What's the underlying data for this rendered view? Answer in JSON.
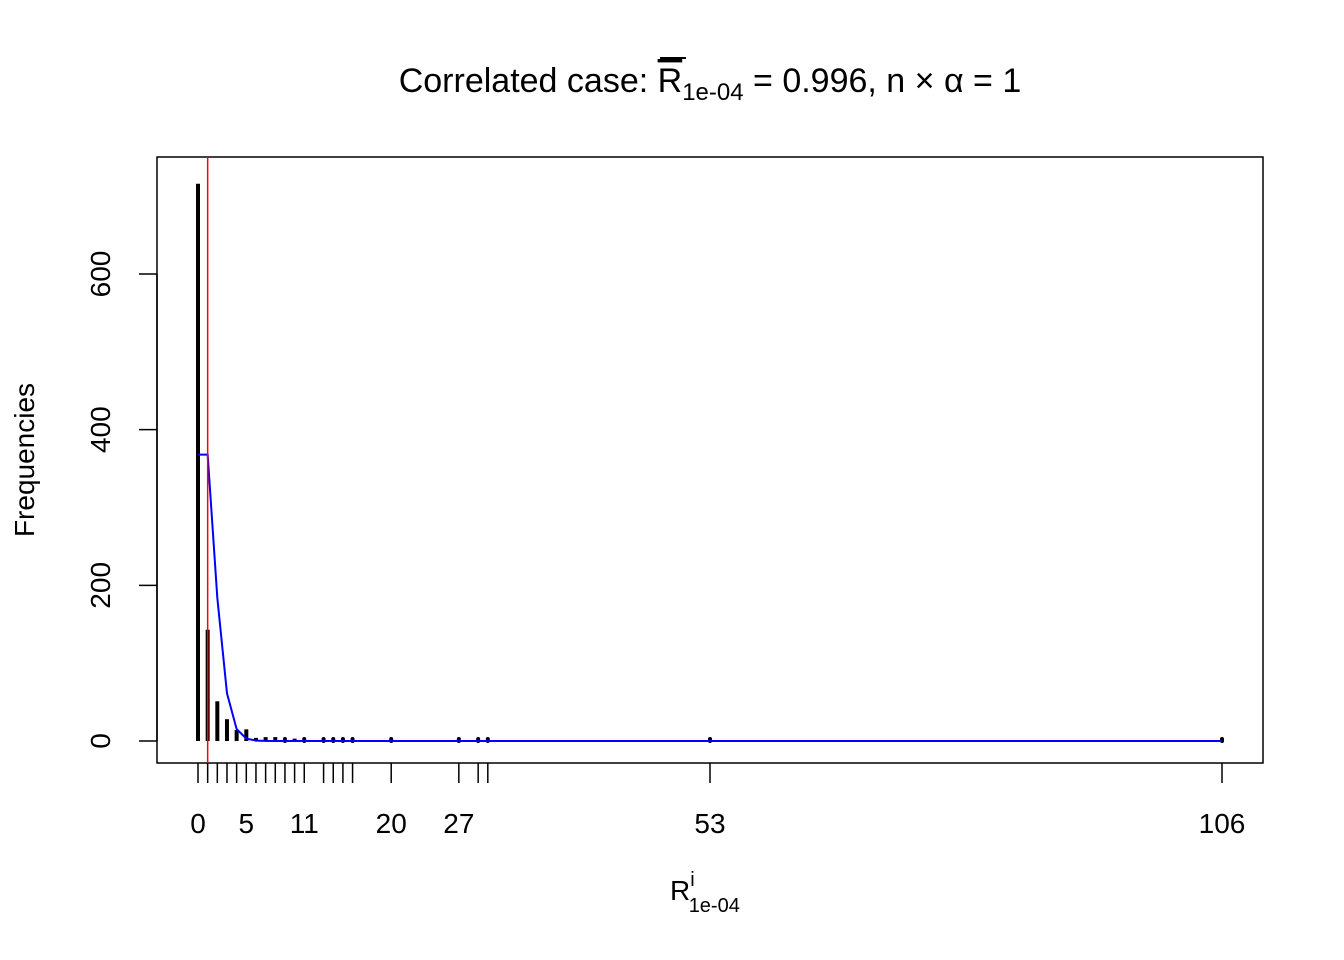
{
  "chart_data": {
    "type": "bar",
    "title": {
      "prefix": "Correlated case: ",
      "symbol": "R",
      "symbol_subscript": "1e-04",
      "suffix": " = 0.996, n × α = 1"
    },
    "xlabel": {
      "symbol": "R",
      "superscript": "i",
      "subscript": "1e-04"
    },
    "ylabel": "Frequencies",
    "xlim": [
      0,
      106
    ],
    "ylim": [
      0,
      720
    ],
    "x_tick_labels": [
      "0",
      "5",
      "11",
      "20",
      "27",
      "53",
      "106"
    ],
    "y_tick_labels": [
      "0",
      "200",
      "400",
      "600"
    ],
    "x": [
      0,
      1,
      2,
      3,
      4,
      5,
      6,
      7,
      8,
      9,
      10,
      11,
      13,
      14,
      15,
      16,
      20,
      27,
      29,
      30,
      53,
      106
    ],
    "values": [
      716,
      143,
      51,
      28,
      14,
      15,
      4,
      5,
      5,
      2,
      3,
      2,
      1,
      2,
      1,
      2,
      1,
      1,
      1,
      2,
      1,
      1
    ],
    "curve": {
      "color": "#0000ff",
      "x": [
        0,
        1,
        2,
        3,
        4,
        5,
        6,
        7,
        8,
        106
      ],
      "y": [
        367.9,
        367.9,
        183.9,
        61.3,
        15.3,
        3.1,
        0.5,
        0.1,
        0,
        0
      ]
    },
    "reference_line": {
      "x": 1,
      "color": "#ff0000"
    },
    "bar_color": "#000000",
    "grid": false
  }
}
